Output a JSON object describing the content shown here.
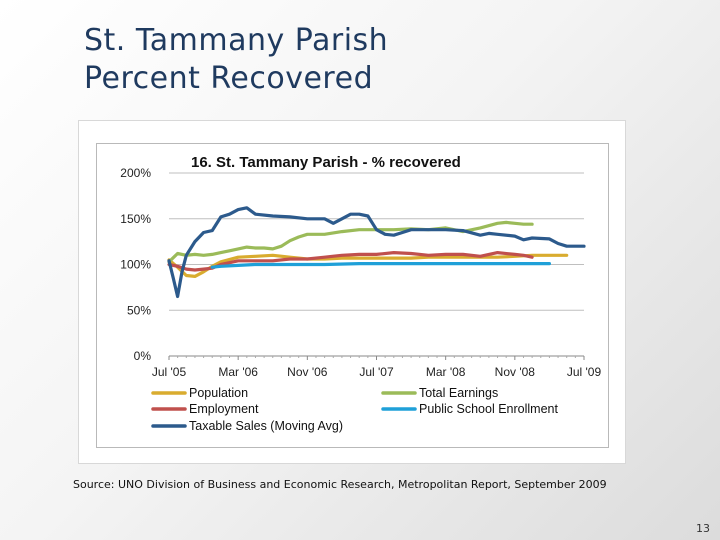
{
  "slide": {
    "title_line1": "St. Tammany Parish",
    "title_line2": "Percent Recovered",
    "source": "Source: UNO Division of Business and Economic Research, Metropolitan Report, September 2009",
    "page_number": "13"
  },
  "chart_data": {
    "type": "line",
    "title": "16. St. Tammany Parish - % recovered",
    "xlabel": "",
    "ylabel": "",
    "x_ticks": [
      "Jul '05",
      "Mar '06",
      "Nov '06",
      "Jul '07",
      "Mar '08",
      "Nov '08",
      "Jul '09"
    ],
    "y_ticks": [
      "0%",
      "50%",
      "100%",
      "150%",
      "200%"
    ],
    "ylim": [
      0,
      200
    ],
    "x_unit": "months since Jul '05",
    "xlim": [
      0,
      48
    ],
    "grid": true,
    "legend_position": "bottom",
    "series": [
      {
        "name": "Population",
        "color": "#d9ac2f",
        "points": [
          [
            0,
            105
          ],
          [
            1,
            97
          ],
          [
            2,
            88
          ],
          [
            3,
            87
          ],
          [
            4,
            92
          ],
          [
            5,
            98
          ],
          [
            6,
            103
          ],
          [
            8,
            108
          ],
          [
            10,
            109
          ],
          [
            12,
            110
          ],
          [
            14,
            108
          ],
          [
            16,
            106
          ],
          [
            18,
            106
          ],
          [
            20,
            107
          ],
          [
            22,
            107
          ],
          [
            24,
            107
          ],
          [
            26,
            107
          ],
          [
            28,
            107
          ],
          [
            30,
            108
          ],
          [
            32,
            108
          ],
          [
            34,
            108
          ],
          [
            36,
            108
          ],
          [
            38,
            108
          ],
          [
            40,
            109
          ],
          [
            42,
            110
          ],
          [
            44,
            110
          ],
          [
            46,
            110
          ]
        ]
      },
      {
        "name": "Total Earnings",
        "color": "#9bbb59",
        "points": [
          [
            0,
            103
          ],
          [
            1,
            112
          ],
          [
            2,
            110
          ],
          [
            3,
            111
          ],
          [
            4,
            110
          ],
          [
            5,
            111
          ],
          [
            6,
            113
          ],
          [
            7,
            115
          ],
          [
            8,
            117
          ],
          [
            9,
            119
          ],
          [
            10,
            118
          ],
          [
            11,
            118
          ],
          [
            12,
            117
          ],
          [
            13,
            120
          ],
          [
            14,
            126
          ],
          [
            15,
            130
          ],
          [
            16,
            133
          ],
          [
            17,
            133
          ],
          [
            18,
            133
          ],
          [
            20,
            136
          ],
          [
            22,
            138
          ],
          [
            24,
            138
          ],
          [
            26,
            138
          ],
          [
            28,
            139
          ],
          [
            30,
            138
          ],
          [
            32,
            140
          ],
          [
            34,
            136
          ],
          [
            36,
            140
          ],
          [
            38,
            145
          ],
          [
            39,
            146
          ],
          [
            40,
            145
          ],
          [
            41,
            144
          ],
          [
            42,
            144
          ]
        ]
      },
      {
        "name": "Employment",
        "color": "#c0504d",
        "points": [
          [
            0,
            100
          ],
          [
            1,
            98
          ],
          [
            2,
            95
          ],
          [
            3,
            94
          ],
          [
            4,
            95
          ],
          [
            5,
            96
          ],
          [
            6,
            100
          ],
          [
            8,
            104
          ],
          [
            10,
            104
          ],
          [
            12,
            104
          ],
          [
            14,
            106
          ],
          [
            16,
            106
          ],
          [
            18,
            108
          ],
          [
            20,
            110
          ],
          [
            22,
            111
          ],
          [
            24,
            111
          ],
          [
            26,
            113
          ],
          [
            28,
            112
          ],
          [
            30,
            110
          ],
          [
            32,
            111
          ],
          [
            34,
            111
          ],
          [
            36,
            109
          ],
          [
            38,
            113
          ],
          [
            40,
            111
          ],
          [
            41,
            110
          ],
          [
            42,
            108
          ]
        ]
      },
      {
        "name": "Public School Enrollment",
        "color": "#1fa0d8",
        "points": [
          [
            5,
            97
          ],
          [
            6,
            98
          ],
          [
            8,
            99
          ],
          [
            10,
            100
          ],
          [
            14,
            100
          ],
          [
            18,
            100
          ],
          [
            22,
            101
          ],
          [
            26,
            101
          ],
          [
            30,
            101
          ],
          [
            34,
            101
          ],
          [
            38,
            101
          ],
          [
            42,
            101
          ],
          [
            44,
            101
          ]
        ]
      },
      {
        "name": "Taxable Sales (Moving Avg)",
        "color": "#2c5a8c",
        "points": [
          [
            0,
            104
          ],
          [
            0.5,
            85
          ],
          [
            1,
            65
          ],
          [
            1.5,
            92
          ],
          [
            2,
            110
          ],
          [
            3,
            125
          ],
          [
            4,
            135
          ],
          [
            5,
            137
          ],
          [
            6,
            152
          ],
          [
            7,
            155
          ],
          [
            8,
            160
          ],
          [
            9,
            162
          ],
          [
            10,
            155
          ],
          [
            12,
            153
          ],
          [
            14,
            152
          ],
          [
            16,
            150
          ],
          [
            18,
            150
          ],
          [
            19,
            145
          ],
          [
            20,
            150
          ],
          [
            21,
            155
          ],
          [
            22,
            155
          ],
          [
            23,
            153
          ],
          [
            24,
            138
          ],
          [
            25,
            133
          ],
          [
            26,
            132
          ],
          [
            27,
            135
          ],
          [
            28,
            138
          ],
          [
            30,
            138
          ],
          [
            32,
            138
          ],
          [
            34,
            137
          ],
          [
            36,
            132
          ],
          [
            37,
            134
          ],
          [
            38,
            133
          ],
          [
            40,
            131
          ],
          [
            41,
            127
          ],
          [
            42,
            129
          ],
          [
            44,
            128
          ],
          [
            45,
            123
          ],
          [
            46,
            120
          ],
          [
            47,
            120
          ],
          [
            48,
            120
          ]
        ]
      }
    ]
  }
}
